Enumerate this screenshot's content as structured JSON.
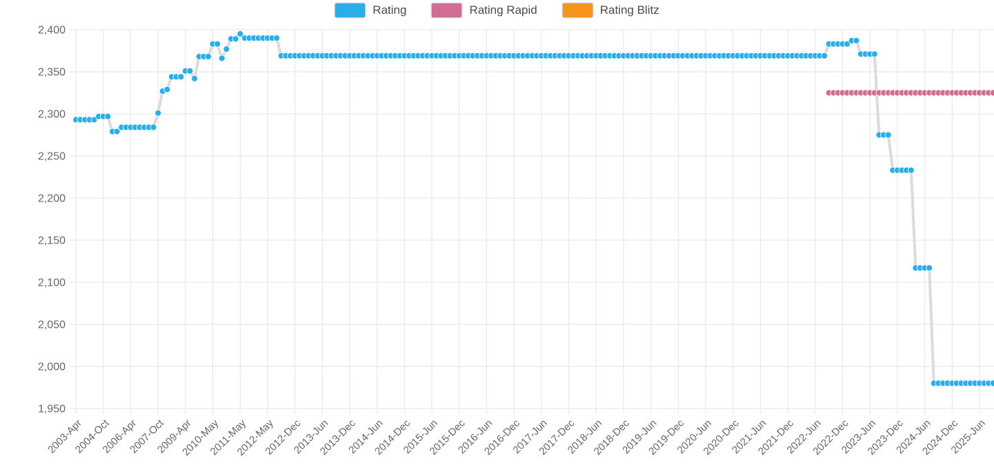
{
  "legend": {
    "items": [
      {
        "label": "Rating",
        "color": "#2BAEE8"
      },
      {
        "label": "Rating Rapid",
        "color": "#D16C92"
      },
      {
        "label": "Rating Blitz",
        "color": "#F7941E"
      }
    ]
  },
  "chart_data": {
    "type": "scatter",
    "title": "",
    "xlabel": "",
    "ylabel": "",
    "ylim": [
      1950,
      2400
    ],
    "y_step": 50,
    "grid": true,
    "legend_position": "top-center",
    "y_tick_labels": [
      "2,400",
      "2,350",
      "2,300",
      "2,250",
      "2,200",
      "2,150",
      "2,100",
      "2,050",
      "2,000",
      "1,950"
    ],
    "x_tick_labels": [
      "2003-Apr",
      "2004-Oct",
      "2006-Apr",
      "2007-Oct",
      "2009-Apr",
      "2010-May",
      "2011-May",
      "2012-May",
      "2012-Dec",
      "2013-Jun",
      "2013-Dec",
      "2014-Jun",
      "2014-Dec",
      "2015-Jun",
      "2015-Dec",
      "2016-Jun",
      "2016-Dec",
      "2017-Jun",
      "2017-Dec",
      "2018-Jun",
      "2018-Dec",
      "2019-Jun",
      "2019-Dec",
      "2020-Jun",
      "2020-Dec",
      "2021-Jun",
      "2021-Dec",
      "2022-Jun",
      "2022-Dec",
      "2023-Jun",
      "2023-Dec",
      "2024-Jun",
      "2024-Dec",
      "2025-Jun"
    ],
    "points_per_tick": 6,
    "line_color": "#DBDBDB",
    "grid_color": "#E3E3E3",
    "series": [
      {
        "name": "Rating",
        "color": "#2BAEE8",
        "segments": [
          {
            "from": 0,
            "to": 4,
            "value": 2293
          },
          {
            "from": 5,
            "to": 7,
            "value": 2297
          },
          {
            "from": 8,
            "to": 9,
            "value": 2279
          },
          {
            "from": 10,
            "to": 17,
            "value": 2284
          },
          {
            "from": 18,
            "to": 18,
            "value": 2301
          },
          {
            "from": 19,
            "to": 19,
            "value": 2327
          },
          {
            "from": 20,
            "to": 20,
            "value": 2329
          },
          {
            "from": 21,
            "to": 23,
            "value": 2344
          },
          {
            "from": 24,
            "to": 25,
            "value": 2351
          },
          {
            "from": 26,
            "to": 26,
            "value": 2342
          },
          {
            "from": 27,
            "to": 29,
            "value": 2368
          },
          {
            "from": 30,
            "to": 31,
            "value": 2383
          },
          {
            "from": 32,
            "to": 32,
            "value": 2366
          },
          {
            "from": 33,
            "to": 33,
            "value": 2377
          },
          {
            "from": 34,
            "to": 35,
            "value": 2389
          },
          {
            "from": 36,
            "to": 36,
            "value": 2395
          },
          {
            "from": 37,
            "to": 44,
            "value": 2390
          },
          {
            "from": 45,
            "to": 164,
            "value": 2369
          },
          {
            "from": 165,
            "to": 169,
            "value": 2383
          },
          {
            "from": 170,
            "to": 171,
            "value": 2387
          },
          {
            "from": 172,
            "to": 175,
            "value": 2371
          },
          {
            "from": 176,
            "to": 178,
            "value": 2275
          },
          {
            "from": 179,
            "to": 183,
            "value": 2233
          },
          {
            "from": 184,
            "to": 187,
            "value": 2117
          },
          {
            "from": 188,
            "to": 201,
            "value": 1980
          }
        ]
      },
      {
        "name": "Rating Rapid",
        "color": "#D16C92",
        "segments": [
          {
            "from": 165,
            "to": 201,
            "value": 2325
          }
        ]
      },
      {
        "name": "Rating Blitz",
        "color": "#F7941E",
        "segments": []
      }
    ]
  }
}
